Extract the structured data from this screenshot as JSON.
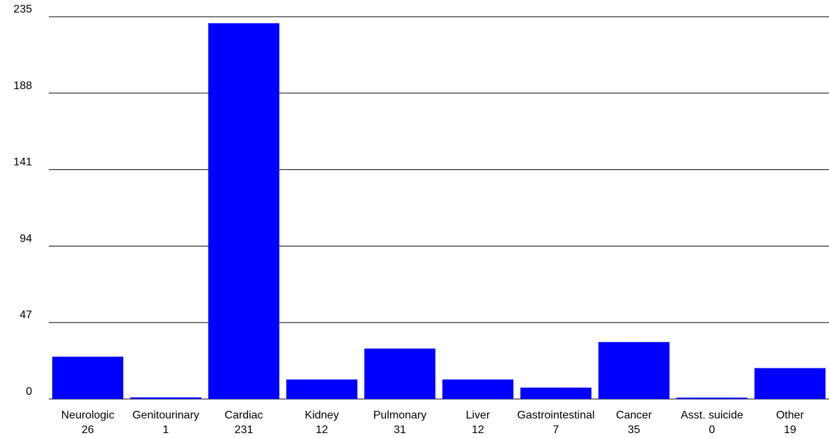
{
  "chart_data": {
    "type": "bar",
    "categories": [
      "Neurologic",
      "Genitourinary",
      "Cardiac",
      "Kidney",
      "Pulmonary",
      "Liver",
      "Gastrointestinal",
      "Cancer",
      "Asst. suicide",
      "Other"
    ],
    "values": [
      26,
      1,
      231,
      12,
      31,
      12,
      7,
      35,
      0,
      19
    ],
    "value_labels": [
      "26",
      "1",
      "231",
      "12",
      "31",
      "12",
      "7",
      "35",
      "0",
      "19"
    ],
    "yticks": [
      0,
      47,
      94,
      141,
      188,
      235
    ],
    "ylim": [
      0,
      235
    ],
    "grid": true,
    "bar_color": "#0000ff",
    "title": "",
    "xlabel": "",
    "ylabel": ""
  }
}
